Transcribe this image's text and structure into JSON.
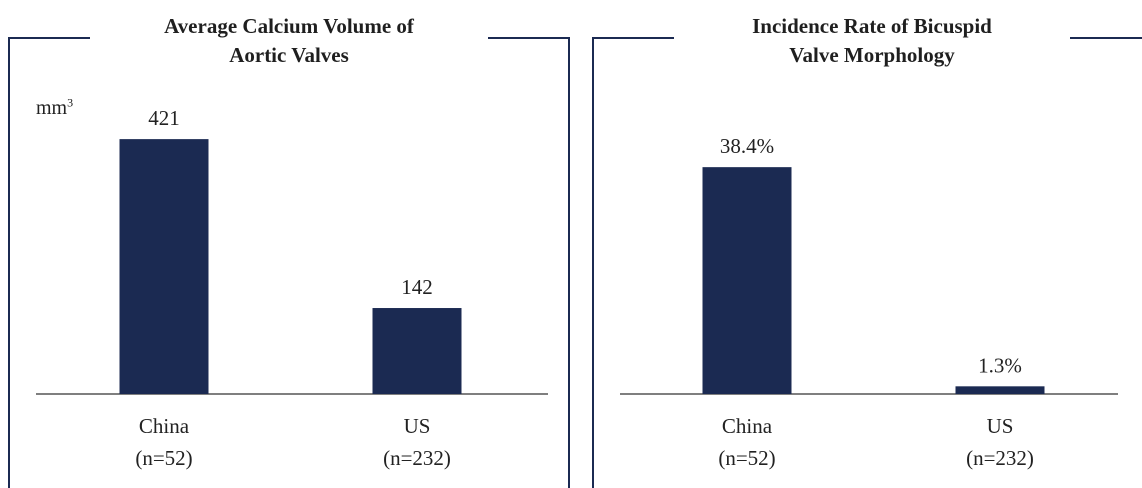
{
  "colors": {
    "bar": "#1b2a52",
    "frame": "#1b2a52",
    "axis": "#333333"
  },
  "chart_data": [
    {
      "type": "bar",
      "title": "Average Calcium Volume of Aortic Valves",
      "title_lines": [
        "Average Calcium Volume of",
        "Aortic Valves"
      ],
      "ylabel": "mm",
      "ylabel_superscript": "3",
      "categories": [
        "China",
        "US"
      ],
      "category_sublabels": [
        "(n=52)",
        "(n=232)"
      ],
      "values": [
        421,
        142
      ],
      "value_labels": [
        "421",
        "142"
      ],
      "ylim": [
        0,
        540
      ],
      "grid": false,
      "legend": "none"
    },
    {
      "type": "bar",
      "title": "Incidence Rate of Bicuspid Valve Morphology",
      "title_lines": [
        "Incidence Rate of Bicuspid",
        "Valve Morphology"
      ],
      "ylabel": "",
      "categories": [
        "China",
        "US"
      ],
      "category_sublabels": [
        "(n=52)",
        "(n=232)"
      ],
      "values": [
        38.4,
        1.3
      ],
      "value_labels": [
        "38.4%",
        "1.3%"
      ],
      "ylim": [
        0,
        51
      ],
      "grid": false,
      "legend": "none"
    }
  ]
}
